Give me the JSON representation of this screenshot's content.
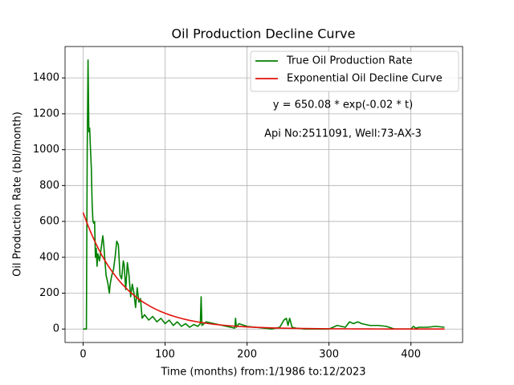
{
  "chart_data": {
    "type": "line",
    "title": "Oil Production Decline Curve",
    "x_label": "Time (months) from:1/1986 to:12/2023",
    "y_label": "Oil Production Rate (bbl/month)",
    "annotations": [
      "y = 650.08 * exp(-0.02 * t)",
      "Api No:2511091, Well:73-AX-3"
    ],
    "x": [
      0,
      2,
      4,
      5,
      6,
      7,
      8,
      9,
      10,
      11,
      12,
      13,
      14,
      15,
      16,
      17,
      18,
      19,
      20,
      22,
      24,
      25,
      26,
      28,
      30,
      32,
      33,
      35,
      37,
      39,
      41,
      43,
      45,
      47,
      49,
      50,
      52,
      54,
      56,
      58,
      60,
      62,
      64,
      66,
      68,
      70,
      72,
      75,
      80,
      85,
      90,
      95,
      100,
      105,
      110,
      115,
      120,
      125,
      130,
      135,
      140,
      143,
      144,
      145,
      150,
      160,
      170,
      180,
      185,
      186,
      187,
      190,
      200,
      210,
      220,
      230,
      240,
      245,
      248,
      250,
      252,
      255,
      260,
      270,
      280,
      300,
      310,
      315,
      320,
      325,
      330,
      335,
      340,
      350,
      360,
      370,
      380,
      390,
      400,
      403,
      406,
      410,
      420,
      430,
      441
    ],
    "series": [
      {
        "name": "True Oil Production Rate",
        "color": "#008000",
        "values": [
          0,
          0,
          0,
          1000,
          1500,
          1100,
          1120,
          1000,
          900,
          700,
          600,
          590,
          600,
          400,
          450,
          350,
          420,
          400,
          380,
          450,
          520,
          480,
          420,
          300,
          260,
          200,
          250,
          300,
          330,
          400,
          490,
          470,
          300,
          280,
          380,
          360,
          220,
          370,
          300,
          180,
          250,
          200,
          120,
          230,
          150,
          170,
          60,
          80,
          50,
          70,
          40,
          60,
          30,
          50,
          20,
          40,
          15,
          30,
          10,
          25,
          15,
          30,
          180,
          20,
          40,
          30,
          20,
          10,
          5,
          60,
          10,
          30,
          15,
          10,
          5,
          0,
          10,
          50,
          60,
          20,
          60,
          10,
          5,
          0,
          0,
          0,
          20,
          15,
          10,
          40,
          30,
          40,
          30,
          20,
          20,
          15,
          0,
          0,
          0,
          15,
          5,
          10,
          10,
          15,
          10
        ]
      },
      {
        "name": "Exponential Oil Decline Curve",
        "color": "#e3120b",
        "values": [
          650.08,
          624.6,
          600.1,
          588.2,
          576.6,
          565.2,
          554.0,
          543.0,
          532.2,
          521.7,
          511.4,
          501.2,
          491.3,
          481.6,
          472.1,
          462.7,
          453.5,
          444.6,
          435.8,
          418.7,
          402.3,
          394.3,
          386.5,
          371.3,
          356.8,
          342.8,
          336.0,
          322.8,
          310.2,
          298.0,
          286.3,
          275.1,
          264.3,
          253.9,
          244.0,
          239.2,
          229.8,
          220.8,
          212.1,
          203.8,
          195.8,
          188.1,
          180.8,
          173.7,
          166.9,
          160.3,
          154.0,
          145.1,
          131.3,
          118.8,
          107.5,
          97.2,
          88.0,
          79.6,
          72.0,
          65.2,
          59.0,
          53.4,
          48.3,
          43.7,
          39.5,
          37.2,
          36.5,
          35.8,
          32.4,
          26.5,
          21.7,
          17.8,
          16.1,
          15.8,
          15.4,
          14.5,
          11.9,
          9.8,
          8.0,
          6.5,
          5.4,
          4.8,
          4.6,
          4.4,
          4.2,
          4.0,
          3.6,
          2.9,
          2.4,
          1.6,
          1.3,
          1.2,
          1.1,
          1.0,
          0.9,
          0.8,
          0.7,
          0.6,
          0.5,
          0.4,
          0.3,
          0.3,
          0.2,
          0.2,
          0.2,
          0.2,
          0.1,
          0.1,
          0.1
        ]
      }
    ],
    "xlim": [
      -22.05,
      463.05
    ],
    "xticks": [
      0,
      100,
      200,
      300,
      400
    ],
    "ylim": [
      -75,
      1575
    ],
    "yticks": [
      0,
      200,
      400,
      600,
      800,
      1000,
      1200,
      1400
    ],
    "grid": true,
    "legend": "upper right"
  }
}
